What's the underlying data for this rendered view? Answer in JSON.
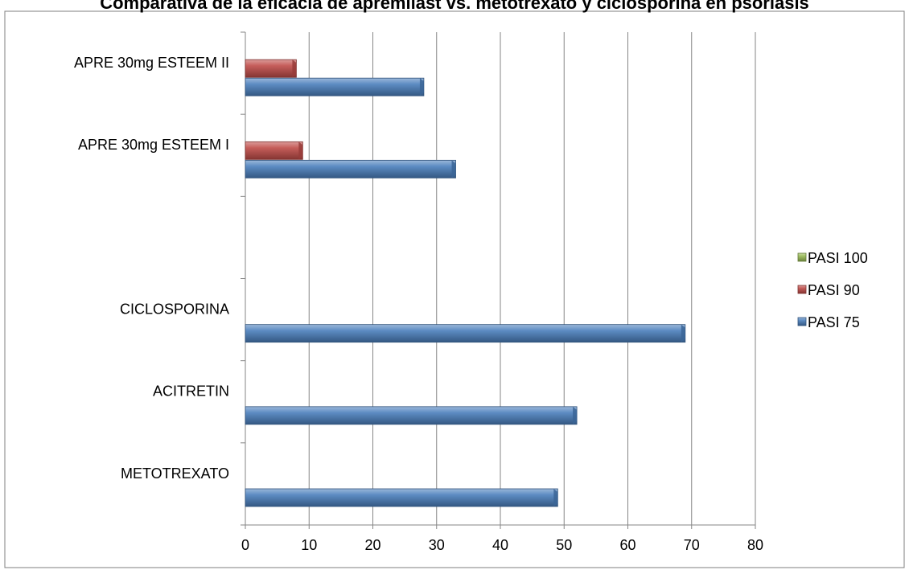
{
  "chart_data": {
    "type": "bar",
    "orientation": "horizontal",
    "style": "3d-cylinder-bars",
    "title": "Comparativa de la eficacia de apremilast vs. metotrexato y ciclosporina en psoriasis",
    "xlabel": "",
    "ylabel": "",
    "xlim": [
      0,
      80
    ],
    "xticks": [
      "0",
      "10",
      "20",
      "30",
      "40",
      "50",
      "60",
      "70",
      "80"
    ],
    "grid": "vertical-major",
    "legend_position": "right",
    "categories": [
      "METOTREXATO",
      "ACITRETIN",
      "CICLOSPORINA",
      "",
      "APRE 30mg ESTEEM I",
      "APRE 30mg ESTEEM II"
    ],
    "series": [
      {
        "name": "PASI 75",
        "color": "#4a7ebb",
        "values": [
          49,
          52,
          69,
          null,
          33,
          28
        ]
      },
      {
        "name": "PASI 90",
        "color": "#be4b48",
        "values": [
          null,
          null,
          null,
          null,
          9,
          8
        ]
      },
      {
        "name": "PASI 100",
        "color": "#98b954",
        "values": [
          null,
          null,
          null,
          null,
          null,
          null
        ]
      }
    ],
    "legend_order": [
      "PASI 100",
      "PASI 90",
      "PASI 75"
    ]
  }
}
